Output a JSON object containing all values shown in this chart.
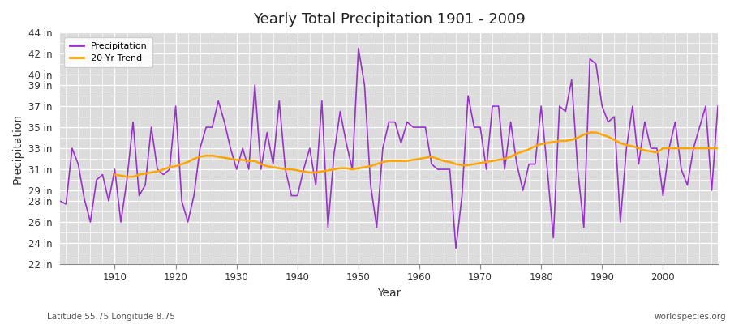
{
  "title": "Yearly Total Precipitation 1901 - 2009",
  "xlabel": "Year",
  "ylabel": "Precipitation",
  "subtitle_left": "Latitude 55.75 Longitude 8.75",
  "subtitle_right": "worldspecies.org",
  "precip_color": "#9932CC",
  "trend_color": "#FFA500",
  "fig_bg_color": "#FFFFFF",
  "plot_bg_color": "#DCDCDC",
  "years": [
    1901,
    1902,
    1903,
    1904,
    1905,
    1906,
    1907,
    1908,
    1909,
    1910,
    1911,
    1912,
    1913,
    1914,
    1915,
    1916,
    1917,
    1918,
    1919,
    1920,
    1921,
    1922,
    1923,
    1924,
    1925,
    1926,
    1927,
    1928,
    1929,
    1930,
    1931,
    1932,
    1933,
    1934,
    1935,
    1936,
    1937,
    1938,
    1939,
    1940,
    1941,
    1942,
    1943,
    1944,
    1945,
    1946,
    1947,
    1948,
    1949,
    1950,
    1951,
    1952,
    1953,
    1954,
    1955,
    1956,
    1957,
    1958,
    1959,
    1960,
    1961,
    1962,
    1963,
    1964,
    1965,
    1966,
    1967,
    1968,
    1969,
    1970,
    1971,
    1972,
    1973,
    1974,
    1975,
    1976,
    1977,
    1978,
    1979,
    1980,
    1981,
    1982,
    1983,
    1984,
    1985,
    1986,
    1987,
    1988,
    1989,
    1990,
    1991,
    1992,
    1993,
    1994,
    1995,
    1996,
    1997,
    1998,
    1999,
    2000,
    2001,
    2002,
    2003,
    2004,
    2005,
    2006,
    2007,
    2008,
    2009
  ],
  "precip": [
    28.0,
    27.7,
    33.0,
    31.5,
    28.2,
    26.0,
    30.0,
    30.5,
    28.0,
    31.0,
    26.0,
    30.0,
    35.5,
    28.5,
    29.5,
    35.0,
    31.0,
    30.5,
    31.0,
    37.0,
    28.0,
    26.0,
    28.5,
    33.0,
    35.0,
    35.0,
    37.5,
    35.5,
    33.0,
    31.0,
    33.0,
    31.0,
    39.0,
    31.0,
    34.5,
    31.5,
    37.5,
    31.0,
    28.5,
    28.5,
    31.0,
    33.0,
    29.5,
    37.5,
    25.5,
    32.5,
    36.5,
    33.5,
    31.0,
    42.5,
    39.0,
    29.5,
    25.5,
    33.0,
    35.5,
    35.5,
    33.5,
    35.5,
    35.0,
    35.0,
    35.0,
    31.5,
    31.0,
    31.0,
    31.0,
    23.5,
    28.5,
    38.0,
    35.0,
    35.0,
    31.0,
    37.0,
    37.0,
    31.0,
    35.5,
    31.5,
    29.0,
    31.5,
    31.5,
    37.0,
    31.0,
    24.5,
    37.0,
    36.5,
    39.5,
    31.0,
    25.5,
    41.5,
    41.0,
    37.0,
    35.5,
    36.0,
    26.0,
    33.0,
    37.0,
    31.5,
    35.5,
    33.0,
    33.0,
    28.5,
    33.0,
    35.5,
    31.0,
    29.5,
    33.0,
    35.0,
    37.0,
    29.0,
    37.0
  ],
  "trend": [
    null,
    null,
    null,
    null,
    null,
    null,
    null,
    null,
    null,
    30.5,
    30.4,
    30.3,
    30.3,
    30.5,
    30.6,
    30.7,
    30.8,
    31.0,
    31.2,
    31.3,
    31.5,
    31.7,
    32.0,
    32.2,
    32.3,
    32.3,
    32.2,
    32.1,
    32.0,
    31.9,
    31.9,
    31.8,
    31.8,
    31.5,
    31.3,
    31.2,
    31.1,
    31.0,
    31.0,
    30.9,
    30.8,
    30.7,
    30.7,
    30.8,
    30.9,
    31.0,
    31.1,
    31.1,
    31.0,
    31.1,
    31.2,
    31.3,
    31.5,
    31.7,
    31.8,
    31.8,
    31.8,
    31.8,
    31.9,
    32.0,
    32.1,
    32.2,
    32.0,
    31.8,
    31.7,
    31.5,
    31.4,
    31.4,
    31.5,
    31.6,
    31.7,
    31.8,
    31.9,
    32.0,
    32.2,
    32.5,
    32.7,
    32.9,
    33.2,
    33.4,
    33.5,
    33.6,
    33.7,
    33.7,
    33.8,
    34.0,
    34.3,
    34.5,
    34.5,
    34.3,
    34.1,
    33.8,
    33.5,
    33.3,
    33.2,
    33.0,
    32.8,
    32.7,
    32.6,
    33.0,
    33.0,
    33.0,
    33.0,
    33.0,
    33.0,
    33.0,
    33.0,
    33.0,
    33.0
  ],
  "xticks": [
    1910,
    1920,
    1930,
    1940,
    1950,
    1960,
    1970,
    1980,
    1990,
    2000
  ],
  "yticks_labels": [
    "22 in",
    "24 in",
    "26 in",
    "28 in",
    "29 in",
    "31 in",
    "33 in",
    "35 in",
    "37 in",
    "39 in",
    "40 in",
    "42 in",
    "44 in"
  ],
  "yticks_vals": [
    22,
    24,
    26,
    28,
    29,
    31,
    33,
    35,
    37,
    39,
    40,
    42,
    44
  ],
  "ylim_min": 22,
  "ylim_max": 44
}
